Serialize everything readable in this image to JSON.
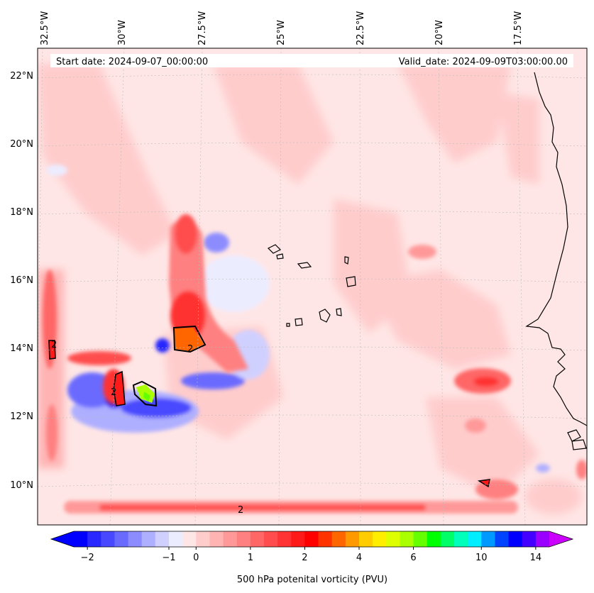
{
  "map": {
    "start_date": "Start date: 2024-09-07_00:00:00",
    "valid_date": "Valid_date: 2024-09-09T03:00:00.00",
    "lon_labels": [
      "32.5°W",
      "30°W",
      "27.5°W",
      "25°W",
      "22.5°W",
      "20°W",
      "17.5°W"
    ],
    "lat_labels": [
      "22°N",
      "20°N",
      "18°N",
      "16°N",
      "14°N",
      "12°N",
      "10°N"
    ],
    "contour_label": "2"
  },
  "colorbar": {
    "title": "500 hPa potenital vorticity (PVU)",
    "tick_labels": [
      "−2",
      "−1",
      "0",
      "1",
      "2",
      "4",
      "6",
      "10",
      "14"
    ],
    "colors": [
      "#0000ff",
      "#2828ff",
      "#4848ff",
      "#6a6aff",
      "#8c8cff",
      "#afafff",
      "#d0d0ff",
      "#ececff",
      "#ffe6e6",
      "#ffcccc",
      "#ffb3b3",
      "#ff9999",
      "#ff8080",
      "#ff6666",
      "#ff4d4d",
      "#ff3333",
      "#ff1a1a",
      "#ff0000",
      "#ff3300",
      "#ff6600",
      "#ff9900",
      "#ffcc00",
      "#ffee00",
      "#ddff00",
      "#aaff00",
      "#66ff00",
      "#00ff00",
      "#00ff66",
      "#00ffbb",
      "#00eeff",
      "#0099ff",
      "#0044ff",
      "#0000ff",
      "#4400ff",
      "#9900ff"
    ],
    "under_color": "#0000ff",
    "over_color": "#cc00ff"
  }
}
